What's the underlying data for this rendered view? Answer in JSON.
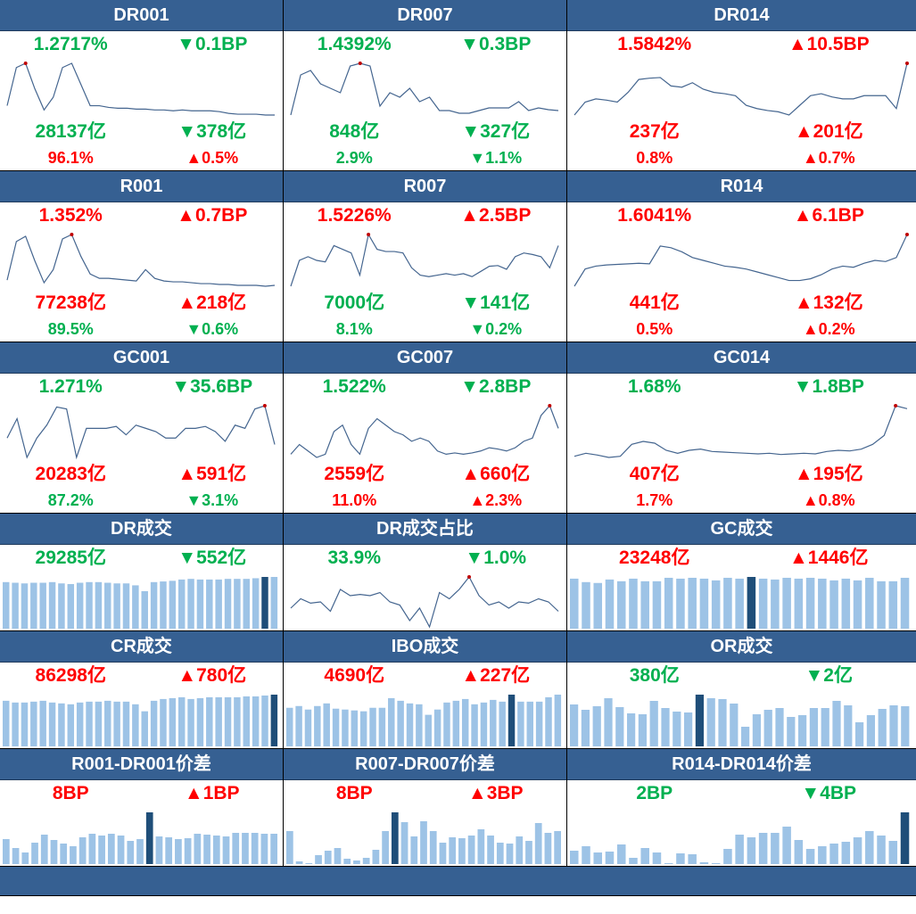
{
  "colors": {
    "header": "#366092",
    "up": "#ff0000",
    "down": "#00b050",
    "line": "#44658f",
    "bar": "#9dc3e6",
    "bar_highlight": "#1f4e79",
    "peak": "#c00000"
  },
  "tiles": [
    {
      "title": "DR001",
      "type": "line",
      "stats": [
        [
          {
            "t": "1.2717%",
            "c": "down"
          },
          {
            "t": "▼0.1BP",
            "c": "down"
          }
        ],
        [
          {
            "t": "28137亿",
            "c": "down"
          },
          {
            "t": "▼378亿",
            "c": "down"
          }
        ],
        [
          {
            "t": "96.1%",
            "c": "up"
          },
          {
            "t": "▲0.5%",
            "c": "up"
          }
        ]
      ],
      "values": [
        30,
        75,
        80,
        50,
        25,
        40,
        75,
        80,
        55,
        30,
        30,
        28,
        27,
        27,
        26,
        26,
        25,
        25,
        24,
        25,
        24,
        24,
        24,
        23,
        21,
        20,
        20,
        20,
        19,
        19
      ]
    },
    {
      "title": "DR007",
      "type": "line",
      "stats": [
        [
          {
            "t": "1.4392%",
            "c": "down"
          },
          {
            "t": "▼0.3BP",
            "c": "down"
          }
        ],
        [
          {
            "t": "848亿",
            "c": "down"
          },
          {
            "t": "▼327亿",
            "c": "down"
          }
        ],
        [
          {
            "t": "2.9%",
            "c": "down"
          },
          {
            "t": "▼1.1%",
            "c": "down"
          }
        ]
      ],
      "values": [
        20,
        65,
        70,
        55,
        50,
        45,
        75,
        78,
        75,
        30,
        45,
        40,
        50,
        35,
        40,
        25,
        25,
        22,
        22,
        25,
        28,
        28,
        28,
        35,
        25,
        28,
        26,
        25
      ]
    },
    {
      "title": "DR014",
      "type": "line",
      "stats": [
        [
          {
            "t": "1.5842%",
            "c": "up"
          },
          {
            "t": "▲10.5BP",
            "c": "up"
          }
        ],
        [
          {
            "t": "237亿",
            "c": "up"
          },
          {
            "t": "▲201亿",
            "c": "up"
          }
        ],
        [
          {
            "t": "0.8%",
            "c": "up"
          },
          {
            "t": "▲0.7%",
            "c": "up"
          }
        ]
      ],
      "values": [
        5,
        25,
        30,
        28,
        25,
        40,
        60,
        62,
        63,
        50,
        48,
        55,
        45,
        40,
        38,
        35,
        20,
        15,
        12,
        10,
        5,
        20,
        35,
        38,
        33,
        30,
        30,
        35,
        35,
        35,
        15,
        85
      ]
    },
    {
      "title": "R001",
      "type": "line",
      "stats": [
        [
          {
            "t": "1.352%",
            "c": "up"
          },
          {
            "t": "▲0.7BP",
            "c": "up"
          }
        ],
        [
          {
            "t": "77238亿",
            "c": "up"
          },
          {
            "t": "▲218亿",
            "c": "up"
          }
        ],
        [
          {
            "t": "89.5%",
            "c": "down"
          },
          {
            "t": "▼0.6%",
            "c": "down"
          }
        ]
      ],
      "values": [
        28,
        72,
        78,
        50,
        25,
        40,
        75,
        80,
        55,
        35,
        30,
        30,
        29,
        28,
        27,
        40,
        30,
        27,
        26,
        26,
        25,
        24,
        24,
        23,
        23,
        22,
        22,
        22,
        21,
        22
      ]
    },
    {
      "title": "R007",
      "type": "line",
      "stats": [
        [
          {
            "t": "1.5226%",
            "c": "up"
          },
          {
            "t": "▲2.5BP",
            "c": "up"
          }
        ],
        [
          {
            "t": "7000亿",
            "c": "down"
          },
          {
            "t": "▼141亿",
            "c": "down"
          }
        ],
        [
          {
            "t": "8.1%",
            "c": "down"
          },
          {
            "t": "▼0.2%",
            "c": "down"
          }
        ]
      ],
      "values": [
        5,
        40,
        45,
        40,
        38,
        60,
        55,
        50,
        20,
        75,
        55,
        52,
        52,
        50,
        30,
        20,
        18,
        20,
        22,
        20,
        22,
        18,
        25,
        32,
        33,
        28,
        45,
        50,
        48,
        45,
        30,
        60
      ]
    },
    {
      "title": "R014",
      "type": "line",
      "stats": [
        [
          {
            "t": "1.6041%",
            "c": "up"
          },
          {
            "t": "▲6.1BP",
            "c": "up"
          }
        ],
        [
          {
            "t": "441亿",
            "c": "up"
          },
          {
            "t": "▲132亿",
            "c": "up"
          }
        ],
        [
          {
            "t": "0.5%",
            "c": "up"
          },
          {
            "t": "▲0.2%",
            "c": "up"
          }
        ]
      ],
      "values": [
        5,
        35,
        40,
        42,
        43,
        44,
        45,
        44,
        75,
        72,
        65,
        55,
        50,
        45,
        40,
        38,
        35,
        30,
        25,
        20,
        15,
        15,
        18,
        25,
        35,
        40,
        38,
        45,
        50,
        48,
        55,
        95
      ]
    },
    {
      "title": "GC001",
      "type": "line",
      "stats": [
        [
          {
            "t": "1.271%",
            "c": "down"
          },
          {
            "t": "▼35.6BP",
            "c": "down"
          }
        ],
        [
          {
            "t": "20283亿",
            "c": "up"
          },
          {
            "t": "▲591亿",
            "c": "up"
          }
        ],
        [
          {
            "t": "87.2%",
            "c": "down"
          },
          {
            "t": "▼3.1%",
            "c": "down"
          }
        ]
      ],
      "values": [
        40,
        70,
        10,
        40,
        60,
        88,
        85,
        10,
        55,
        55,
        55,
        58,
        45,
        60,
        55,
        50,
        40,
        40,
        55,
        55,
        58,
        50,
        35,
        60,
        55,
        85,
        90,
        30
      ]
    },
    {
      "title": "GC007",
      "type": "line",
      "stats": [
        [
          {
            "t": "1.522%",
            "c": "down"
          },
          {
            "t": "▼2.8BP",
            "c": "down"
          }
        ],
        [
          {
            "t": "2559亿",
            "c": "up"
          },
          {
            "t": "▲660亿",
            "c": "up"
          }
        ],
        [
          {
            "t": "11.0%",
            "c": "up"
          },
          {
            "t": "▲2.3%",
            "c": "up"
          }
        ]
      ],
      "values": [
        20,
        35,
        25,
        15,
        20,
        55,
        65,
        35,
        20,
        60,
        75,
        65,
        55,
        50,
        40,
        45,
        40,
        25,
        20,
        22,
        20,
        22,
        25,
        30,
        28,
        25,
        30,
        40,
        45,
        80,
        95,
        60
      ]
    },
    {
      "title": "GC014",
      "type": "line",
      "stats": [
        [
          {
            "t": "1.68%",
            "c": "down"
          },
          {
            "t": "▼1.8BP",
            "c": "down"
          }
        ],
        [
          {
            "t": "407亿",
            "c": "up"
          },
          {
            "t": "▲195亿",
            "c": "up"
          }
        ],
        [
          {
            "t": "1.7%",
            "c": "up"
          },
          {
            "t": "▲0.8%",
            "c": "up"
          }
        ]
      ],
      "values": [
        10,
        15,
        12,
        8,
        10,
        30,
        35,
        32,
        20,
        15,
        20,
        22,
        18,
        17,
        16,
        15,
        14,
        15,
        13,
        14,
        15,
        14,
        18,
        20,
        19,
        22,
        30,
        45,
        95,
        90
      ]
    },
    {
      "title": "DR成交",
      "type": "bar",
      "highlight": 28,
      "stats": [
        [
          {
            "t": "29285亿",
            "c": "down"
          },
          {
            "t": "▼552亿",
            "c": "down"
          }
        ]
      ],
      "values": [
        72,
        71,
        70,
        71,
        71,
        72,
        70,
        69,
        71,
        72,
        72,
        71,
        70,
        70,
        67,
        58,
        72,
        73,
        74,
        76,
        77,
        76,
        76,
        76,
        77,
        77,
        77,
        78,
        80,
        80
      ]
    },
    {
      "title": "DR成交占比",
      "type": "line",
      "stats": [
        [
          {
            "t": "33.9%",
            "c": "down"
          },
          {
            "t": "▼1.0%",
            "c": "down"
          }
        ]
      ],
      "values": [
        40,
        55,
        48,
        50,
        35,
        70,
        60,
        62,
        60,
        65,
        50,
        45,
        20,
        40,
        10,
        65,
        55,
        70,
        90,
        60,
        45,
        50,
        40,
        50,
        48,
        55,
        50,
        35
      ]
    },
    {
      "title": "GC成交",
      "type": "bar",
      "highlight": 15,
      "stats": [
        [
          {
            "t": "23248亿",
            "c": "up"
          },
          {
            "t": "▲1446亿",
            "c": "up"
          }
        ]
      ],
      "values": [
        58,
        54,
        53,
        57,
        55,
        58,
        55,
        55,
        59,
        58,
        59,
        58,
        56,
        59,
        58,
        60,
        58,
        57,
        59,
        58,
        59,
        58,
        56,
        58,
        56,
        59,
        55,
        55,
        59
      ]
    },
    {
      "title": "CR成交",
      "type": "bar",
      "highlight": 29,
      "stats": [
        [
          {
            "t": "86298亿",
            "c": "up"
          },
          {
            "t": "▲780亿",
            "c": "up"
          }
        ]
      ],
      "values": [
        52,
        50,
        50,
        51,
        52,
        50,
        49,
        48,
        50,
        51,
        51,
        52,
        51,
        51,
        48,
        40,
        52,
        54,
        55,
        56,
        54,
        55,
        56,
        56,
        56,
        56,
        57,
        57,
        58,
        59
      ]
    },
    {
      "title": "IBO成交",
      "type": "bar",
      "highlight": 24,
      "stats": [
        [
          {
            "t": "4690亿",
            "c": "up"
          },
          {
            "t": "▲227亿",
            "c": "up"
          }
        ]
      ],
      "values": [
        44,
        46,
        42,
        46,
        49,
        43,
        42,
        41,
        40,
        44,
        44,
        55,
        52,
        49,
        48,
        36,
        42,
        50,
        52,
        54,
        48,
        50,
        53,
        51,
        59,
        51,
        51,
        51,
        56,
        59
      ]
    },
    {
      "title": "OR成交",
      "type": "bar",
      "highlight": 11,
      "stats": [
        [
          {
            "t": "380亿",
            "c": "down"
          },
          {
            "t": "▼2亿",
            "c": "down"
          }
        ]
      ],
      "values": [
        47,
        41,
        45,
        54,
        44,
        37,
        36,
        51,
        43,
        39,
        38,
        58,
        54,
        53,
        48,
        22,
        36,
        41,
        43,
        33,
        35,
        43,
        43,
        51,
        46,
        27,
        35,
        42,
        46,
        45
      ]
    },
    {
      "title": "R001-DR001价差",
      "type": "bar",
      "highlight": 15,
      "stats": [
        [
          {
            "t": "8BP",
            "c": "up"
          },
          {
            "t": "▲1BP",
            "c": "up"
          }
        ]
      ],
      "values": [
        28,
        18,
        13,
        24,
        33,
        27,
        23,
        20,
        30,
        34,
        32,
        34,
        32,
        26,
        28,
        58,
        31,
        30,
        28,
        29,
        34,
        33,
        32,
        31,
        35,
        35,
        35,
        34,
        34
      ]
    },
    {
      "title": "R007-DR007价差",
      "type": "bar",
      "highlight": 11,
      "stats": [
        [
          {
            "t": "8BP",
            "c": "up"
          },
          {
            "t": "▲3BP",
            "c": "up"
          }
        ]
      ],
      "values": [
        37,
        3,
        1,
        10,
        15,
        18,
        6,
        4,
        7,
        16,
        37,
        58,
        47,
        31,
        48,
        37,
        24,
        30,
        29,
        32,
        39,
        32,
        24,
        23,
        31,
        26,
        46,
        35,
        37
      ]
    },
    {
      "title": "R014-DR014价差",
      "type": "bar",
      "highlight": 28,
      "stats": [
        [
          {
            "t": "2BP",
            "c": "down"
          },
          {
            "t": "▼4BP",
            "c": "down"
          }
        ]
      ],
      "values": [
        15,
        20,
        13,
        14,
        22,
        7,
        18,
        13,
        1,
        12,
        11,
        2,
        1,
        17,
        33,
        30,
        35,
        35,
        42,
        27,
        17,
        20,
        23,
        25,
        30,
        37,
        32,
        26,
        58
      ]
    }
  ]
}
